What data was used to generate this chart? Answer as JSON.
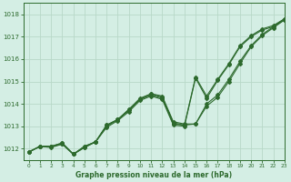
{
  "title": "Graphe pression niveau de la mer (hPa)",
  "background_color": "#d4eee4",
  "grid_color": "#b8d8c8",
  "line_color": "#2d6a2d",
  "xlim": [
    -0.5,
    23
  ],
  "ylim": [
    1011.5,
    1018.5
  ],
  "yticks": [
    1012,
    1013,
    1014,
    1015,
    1016,
    1017,
    1018
  ],
  "xticks": [
    0,
    1,
    2,
    3,
    4,
    5,
    6,
    7,
    8,
    9,
    10,
    11,
    12,
    13,
    14,
    15,
    16,
    17,
    18,
    19,
    20,
    21,
    22,
    23
  ],
  "series": [
    [
      1011.85,
      1012.1,
      1012.1,
      1012.25,
      1011.75,
      1012.1,
      1012.3,
      1013.05,
      1013.3,
      1013.75,
      1014.25,
      1014.45,
      1014.35,
      1013.2,
      1013.1,
      1013.1,
      1013.9,
      1014.3,
      1015.0,
      1015.8,
      1016.55,
      1017.05,
      1017.4,
      1017.75
    ],
    [
      1011.85,
      1012.1,
      1012.1,
      1012.25,
      1011.75,
      1012.1,
      1012.3,
      1013.05,
      1013.3,
      1013.75,
      1014.2,
      1014.45,
      1014.3,
      1013.15,
      1013.05,
      1013.1,
      1014.0,
      1014.4,
      1015.1,
      1015.9,
      1016.6,
      1017.1,
      1017.45,
      1017.8
    ],
    [
      1011.85,
      1012.1,
      1012.1,
      1012.2,
      1011.75,
      1012.05,
      1012.3,
      1013.0,
      1013.3,
      1013.7,
      1014.2,
      1014.4,
      1014.25,
      1013.1,
      1013.05,
      1015.2,
      1014.35,
      1015.1,
      1015.8,
      1016.6,
      1017.05,
      1017.35,
      1017.5,
      1017.8
    ],
    [
      1011.85,
      1012.1,
      1012.05,
      1012.2,
      1011.75,
      1012.05,
      1012.3,
      1012.95,
      1013.25,
      1013.65,
      1014.15,
      1014.35,
      1014.2,
      1013.05,
      1013.0,
      1015.15,
      1014.25,
      1015.05,
      1015.75,
      1016.55,
      1017.0,
      1017.3,
      1017.45,
      1017.75
    ]
  ]
}
